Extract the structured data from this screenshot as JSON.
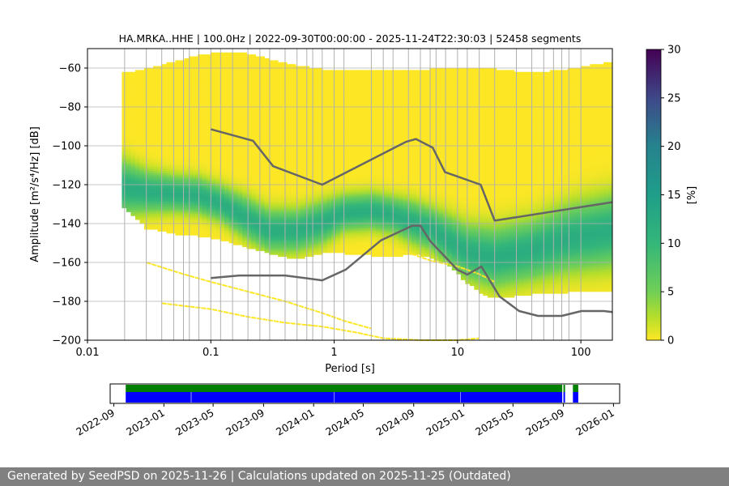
{
  "footer": {
    "text": "Generated by SeedPSD on 2025-11-26 | Calculations updated on 2025-11-25 (Outdated)"
  },
  "colors": {
    "high_noise_model": "#666666",
    "low_noise_model": "#666666",
    "data_bar_green": "#008000",
    "data_bar_blue": "#0000ff",
    "grid": "#b0b0b0",
    "colormap": "viridis_r"
  },
  "chart_data": [
    {
      "type": "heatmap",
      "title": "HA.MRKA..HHE | 100.0Hz | 2022-09-30T00:00:00 - 2025-11-24T22:30:03 | 52458 segments",
      "xlabel": "Period [s]",
      "ylabel": "Amplitude [m²/s⁴/Hz] [dB]",
      "xscale": "log",
      "xlim": [
        0.01,
        180
      ],
      "ylim": [
        -200,
        -50
      ],
      "xticks": [
        0.01,
        0.1,
        1,
        10,
        100
      ],
      "xtick_labels": [
        "0.01",
        "0.1",
        "1",
        "10",
        "100"
      ],
      "yticks": [
        -200,
        -180,
        -160,
        -140,
        -120,
        -100,
        -80,
        -60
      ],
      "ytick_labels": [
        "−200",
        "−180",
        "−160",
        "−140",
        "−120",
        "−100",
        "−80",
        "−60"
      ],
      "grid": true,
      "colorbar": {
        "label": "[%]",
        "range": [
          0,
          30
        ],
        "ticks": [
          0,
          5,
          10,
          15,
          20,
          25,
          30
        ]
      },
      "period_grid_lines": [
        0.02,
        0.03,
        0.04,
        0.05,
        0.06,
        0.067,
        0.08,
        0.1,
        0.12,
        0.15,
        0.2,
        0.25,
        0.3,
        0.4,
        0.5,
        0.6,
        0.67,
        0.8,
        1.0,
        1.2,
        2,
        2.5,
        3,
        4,
        5,
        6,
        6.7,
        8,
        10,
        12,
        15,
        20,
        30,
        40,
        50,
        60,
        70,
        80,
        100
      ],
      "psd_mode": {
        "period": [
          0.02,
          0.03,
          0.05,
          0.08,
          0.12,
          0.2,
          0.3,
          0.5,
          0.8,
          1.2,
          2,
          3,
          4.5,
          6,
          8,
          12,
          20,
          40,
          80,
          180
        ],
        "db": [
          -122,
          -124,
          -125,
          -126,
          -130,
          -138,
          -144,
          -144,
          -140,
          -135,
          -134,
          -136,
          -140,
          -143,
          -148,
          -155,
          -158,
          -154,
          -148,
          -144
        ]
      },
      "psd_width": {
        "period": [
          0.02,
          0.03,
          0.05,
          0.08,
          0.12,
          0.2,
          0.3,
          0.5,
          0.8,
          1.2,
          2,
          3,
          4.5,
          6,
          8,
          12,
          20,
          40,
          80,
          180
        ],
        "db": [
          9,
          7,
          6,
          6,
          6,
          7,
          7,
          7,
          7,
          6,
          6,
          6,
          7,
          7,
          8,
          9,
          10,
          10,
          11,
          12
        ]
      },
      "psd_envelope": {
        "period": [
          0.019,
          0.03,
          0.05,
          0.08,
          0.12,
          0.2,
          0.3,
          0.5,
          0.8,
          1.2,
          2,
          3,
          4.5,
          6,
          8,
          12,
          15,
          20,
          40,
          80,
          180
        ],
        "upper_db": [
          -64,
          -62,
          -58,
          -55,
          -53,
          -54,
          -57,
          -60,
          -62,
          -62,
          -62,
          -62,
          -62,
          -62,
          -61,
          -61,
          -61,
          -62,
          -64,
          -62,
          -58
        ],
        "lower_db": [
          -130,
          -142,
          -145,
          -146,
          -148,
          -152,
          -155,
          -158,
          -155,
          -155,
          -156,
          -157,
          -155,
          -157,
          -160,
          -170,
          -175,
          -178,
          -176,
          -175,
          -174
        ]
      },
      "outlier_lines": [
        {
          "period": [
            0.03,
            0.06,
            0.1,
            0.2,
            0.4,
            0.8,
            1.2,
            2
          ],
          "db": [
            -160,
            -166,
            -170,
            -175,
            -180,
            -186,
            -190,
            -194
          ]
        },
        {
          "period": [
            0.04,
            0.1,
            0.2,
            0.4,
            0.8,
            1.5,
            2.5,
            5,
            10,
            15
          ],
          "db": [
            -181,
            -184,
            -188,
            -191,
            -193,
            -196,
            -199,
            -200,
            -200,
            -199
          ]
        },
        {
          "period": [
            1.5,
            2.5,
            4,
            6,
            10,
            15,
            20
          ],
          "db": [
            -150,
            -152,
            -155,
            -159,
            -162,
            -166,
            -170
          ]
        }
      ],
      "nhnm": {
        "period": [
          0.1,
          0.22,
          0.32,
          0.8,
          3.8,
          4.6,
          6.3,
          7.9,
          15.4,
          20,
          180
        ],
        "db": [
          -91.5,
          -97.4,
          -110.5,
          -120,
          -98,
          -96.5,
          -101,
          -113.5,
          -120,
          -138.5,
          -129
        ]
      },
      "nlnm": {
        "period": [
          0.1,
          0.17,
          0.4,
          0.8,
          1.24,
          2.4,
          4.3,
          5,
          6,
          10,
          12,
          15.6,
          21.9,
          31.6,
          45,
          70,
          101,
          154,
          180
        ],
        "db": [
          -168,
          -166.7,
          -166.7,
          -169.2,
          -163.7,
          -148.6,
          -141.1,
          -141.1,
          -149,
          -163.8,
          -166.2,
          -162.1,
          -177.5,
          -185,
          -187.5,
          -187.5,
          -185,
          -185,
          -185.5
        ]
      }
    },
    {
      "type": "timeline",
      "xticks": [
        "2022-09",
        "2023-01",
        "2023-05",
        "2023-09",
        "2024-01",
        "2024-05",
        "2024-09",
        "2025-01",
        "2025-05",
        "2025-09",
        "2026-01"
      ],
      "xlim": [
        "2022-08-23",
        "2026-01-16"
      ],
      "series": [
        {
          "color": "green",
          "segments": [
            [
              "2022-09-30",
              "2025-08-29"
            ],
            [
              "2025-09-01",
              "2025-09-05"
            ],
            [
              "2025-09-24",
              "2025-10-07"
            ]
          ]
        },
        {
          "color": "blue",
          "segments": [
            [
              "2022-09-30",
              "2023-03-08"
            ],
            [
              "2023-03-09",
              "2024-02-19"
            ],
            [
              "2024-02-20",
              "2024-12-24"
            ],
            [
              "2024-12-25",
              "2025-08-29"
            ],
            [
              "2025-09-01",
              "2025-09-05"
            ],
            [
              "2025-09-24",
              "2025-10-07"
            ]
          ]
        }
      ]
    }
  ]
}
